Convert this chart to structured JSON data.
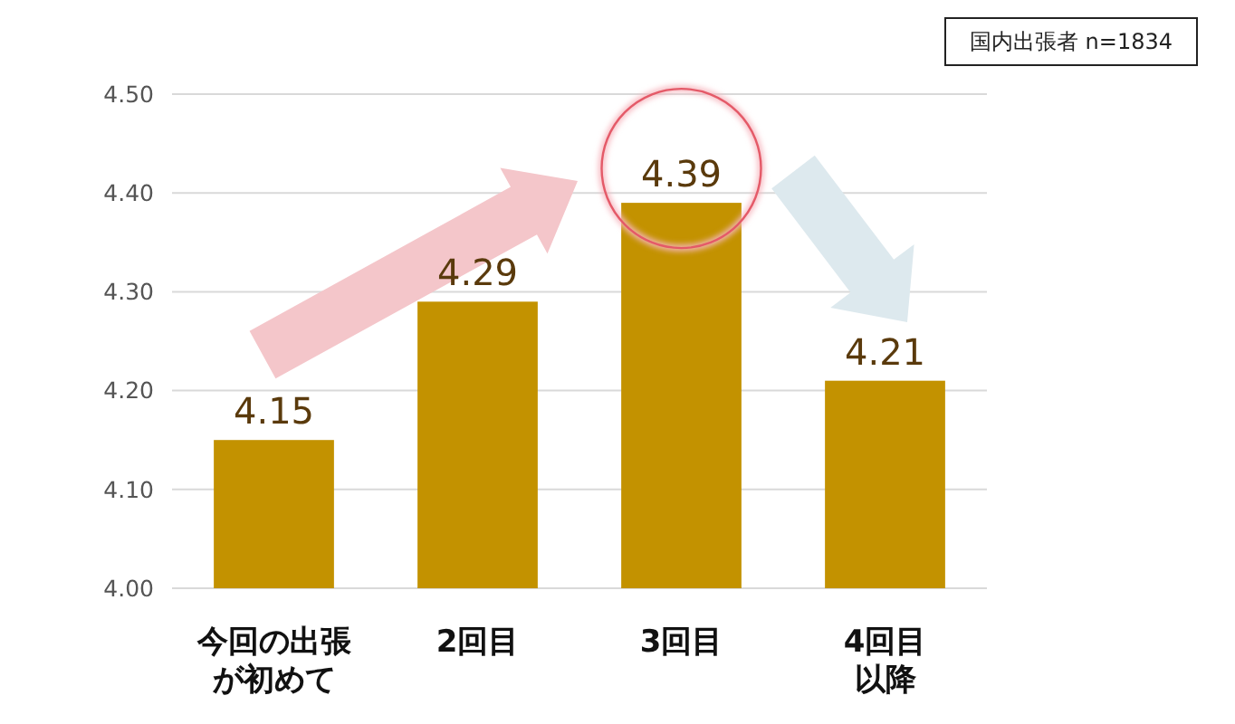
{
  "chart_data": {
    "type": "bar",
    "categories": [
      "今回の出張が初めて",
      "2回目",
      "3回目",
      "4回目以降"
    ],
    "values": [
      4.15,
      4.29,
      4.39,
      4.21
    ],
    "color": "#c39200",
    "ylim": [
      4.0,
      4.5
    ],
    "yticks": [
      {
        "value": 4.0,
        "label": "4.00"
      },
      {
        "value": 4.1,
        "label": "4.10"
      },
      {
        "value": 4.2,
        "label": "4.20"
      },
      {
        "value": 4.3,
        "label": "4.30"
      },
      {
        "value": 4.4,
        "label": "4.40"
      },
      {
        "value": 4.5,
        "label": "4.50"
      }
    ],
    "grid": "y",
    "data_labels": true,
    "annotations": [
      "国内出張者 n=1834"
    ]
  }
}
